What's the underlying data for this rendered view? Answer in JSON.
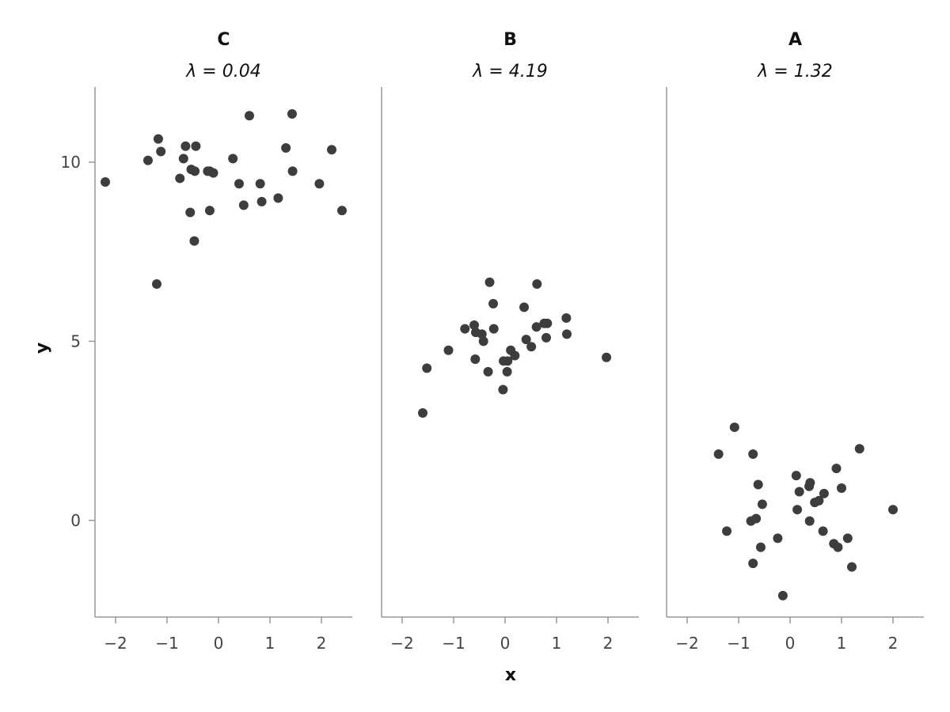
{
  "chart_data": {
    "type": "scatter",
    "xlabel": "x",
    "ylabel": "y",
    "xlim": [
      -2.4,
      2.6
    ],
    "ylim": [
      -2.7,
      12.1
    ],
    "xticks": [
      -2,
      -1,
      0,
      1,
      2
    ],
    "yticks": [
      0,
      5,
      10
    ],
    "x_tick_labels": [
      "−2",
      "−1",
      "0",
      "1",
      "2"
    ],
    "y_tick_labels": [
      "0",
      "5",
      "10"
    ],
    "point_color": "#3d3d3d",
    "axis_color": "#999999",
    "grid": false,
    "panels": [
      {
        "title": "C",
        "subtitle": "λ = 0.04",
        "points": [
          [
            -2.2,
            9.45
          ],
          [
            -1.37,
            10.05
          ],
          [
            -1.17,
            10.65
          ],
          [
            -1.12,
            10.3
          ],
          [
            -1.2,
            6.6
          ],
          [
            -0.75,
            9.55
          ],
          [
            -0.68,
            10.1
          ],
          [
            -0.64,
            10.45
          ],
          [
            -0.53,
            9.8
          ],
          [
            -0.46,
            9.75
          ],
          [
            -0.55,
            8.6
          ],
          [
            -0.47,
            7.8
          ],
          [
            -0.44,
            10.45
          ],
          [
            -0.21,
            9.75
          ],
          [
            -0.17,
            9.75
          ],
          [
            -0.17,
            8.65
          ],
          [
            -0.1,
            9.7
          ],
          [
            0.28,
            10.1
          ],
          [
            0.4,
            9.4
          ],
          [
            0.49,
            8.8
          ],
          [
            0.6,
            11.3
          ],
          [
            0.81,
            9.4
          ],
          [
            0.84,
            8.9
          ],
          [
            1.16,
            9.0
          ],
          [
            1.31,
            10.4
          ],
          [
            1.43,
            11.35
          ],
          [
            1.44,
            9.75
          ],
          [
            1.96,
            9.4
          ],
          [
            2.2,
            10.35
          ],
          [
            2.4,
            8.65
          ]
        ]
      },
      {
        "title": "B",
        "subtitle": "λ = 4.19",
        "points": [
          [
            -1.6,
            3.0
          ],
          [
            -1.52,
            4.25
          ],
          [
            -1.1,
            4.75
          ],
          [
            -0.78,
            5.35
          ],
          [
            -0.6,
            5.45
          ],
          [
            -0.58,
            4.5
          ],
          [
            -0.57,
            5.25
          ],
          [
            -0.45,
            5.2
          ],
          [
            -0.42,
            5.0
          ],
          [
            -0.33,
            4.15
          ],
          [
            -0.3,
            6.65
          ],
          [
            -0.23,
            6.05
          ],
          [
            -0.22,
            5.35
          ],
          [
            -0.04,
            3.65
          ],
          [
            -0.03,
            4.45
          ],
          [
            0.04,
            4.15
          ],
          [
            0.05,
            4.45
          ],
          [
            0.11,
            4.75
          ],
          [
            0.19,
            4.6
          ],
          [
            0.37,
            5.95
          ],
          [
            0.41,
            5.05
          ],
          [
            0.51,
            4.85
          ],
          [
            0.61,
            5.4
          ],
          [
            0.62,
            6.6
          ],
          [
            0.76,
            5.5
          ],
          [
            0.8,
            5.1
          ],
          [
            0.82,
            5.5
          ],
          [
            1.19,
            5.65
          ],
          [
            1.2,
            5.2
          ],
          [
            1.97,
            4.55
          ]
        ]
      },
      {
        "title": "A",
        "subtitle": "λ = 1.32",
        "points": [
          [
            -1.39,
            1.85
          ],
          [
            -1.23,
            -0.3
          ],
          [
            -1.08,
            2.6
          ],
          [
            -0.76,
            -0.02
          ],
          [
            -0.72,
            1.85
          ],
          [
            -0.72,
            -1.2
          ],
          [
            -0.66,
            0.05
          ],
          [
            -0.62,
            1.0
          ],
          [
            -0.57,
            -0.75
          ],
          [
            -0.54,
            0.45
          ],
          [
            -0.24,
            -0.5
          ],
          [
            -0.14,
            -2.1
          ],
          [
            0.12,
            1.25
          ],
          [
            0.14,
            0.3
          ],
          [
            0.18,
            0.8
          ],
          [
            0.37,
            0.95
          ],
          [
            0.38,
            -0.02
          ],
          [
            0.39,
            1.05
          ],
          [
            0.48,
            0.5
          ],
          [
            0.56,
            0.55
          ],
          [
            0.64,
            -0.3
          ],
          [
            0.66,
            0.75
          ],
          [
            0.85,
            -0.65
          ],
          [
            0.9,
            1.45
          ],
          [
            0.93,
            -0.75
          ],
          [
            1.0,
            0.9
          ],
          [
            1.12,
            -0.5
          ],
          [
            1.2,
            -1.3
          ],
          [
            1.35,
            2.0
          ],
          [
            2.0,
            0.3
          ]
        ]
      }
    ]
  }
}
